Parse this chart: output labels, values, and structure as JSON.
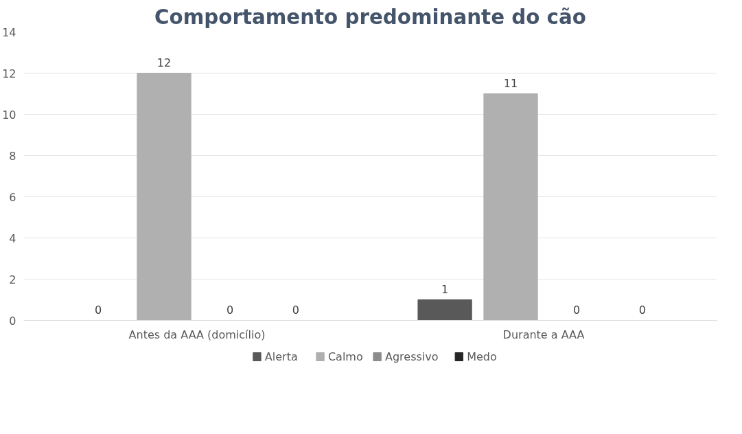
{
  "chart_data": {
    "type": "bar",
    "title": "Comportamento predominante do cão",
    "categories": [
      "Antes da AAA (domicílio)",
      "Durante a AAA"
    ],
    "series": [
      {
        "name": "Alerta",
        "color": "#595959",
        "values": [
          0,
          1
        ]
      },
      {
        "name": "Calmo",
        "color": "#b0b0b0",
        "values": [
          12,
          11
        ]
      },
      {
        "name": "Agressivo",
        "color": "#8c8c8c",
        "values": [
          0,
          0
        ]
      },
      {
        "name": "Medo",
        "color": "#262626",
        "values": [
          0,
          0
        ]
      }
    ],
    "ylim": [
      0,
      14
    ],
    "yticks": [
      0,
      2,
      4,
      6,
      8,
      10,
      12,
      14
    ],
    "grid": "y",
    "legend": "bottom",
    "data_labels": true
  }
}
